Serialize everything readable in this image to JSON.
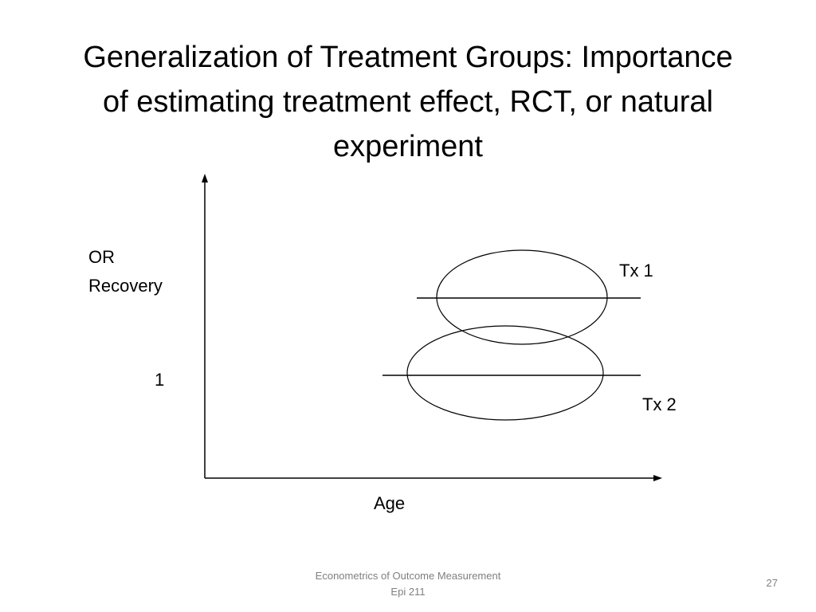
{
  "slide": {
    "title_lines": [
      "Generalization of Treatment Groups: Importance",
      "of estimating treatment effect, RCT, or natural",
      "experiment"
    ],
    "footer_lines": [
      "Econometrics of Outcome Measurement",
      "Epi 211"
    ],
    "page_number": "27"
  },
  "diagram": {
    "y_axis_label_lines": [
      "OR",
      "Recovery"
    ],
    "x_axis_label": "Age",
    "reference_tick_label": "1",
    "groups": [
      {
        "label": "Tx 1"
      },
      {
        "label": "Tx 2"
      }
    ],
    "line_color": "#000000"
  }
}
